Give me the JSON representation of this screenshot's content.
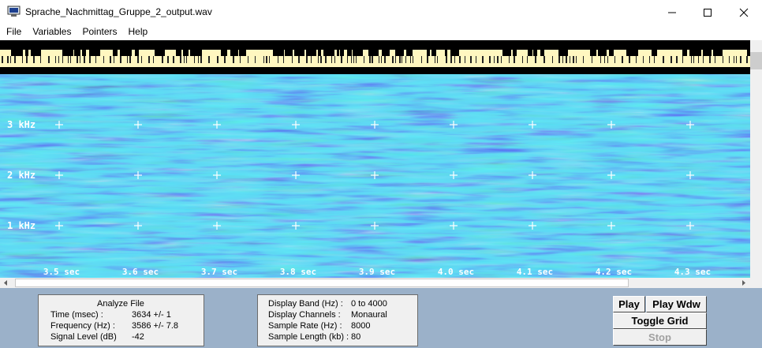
{
  "window": {
    "title": "Sprache_Nachmittag_Gruppe_2_output.wav"
  },
  "menu": [
    "File",
    "Variables",
    "Pointers",
    "Help"
  ],
  "spectrogram": {
    "freq_labels": [
      "3  kHz",
      "2  kHz",
      "1  kHz"
    ],
    "time_labels": [
      "3.5 sec",
      "3.6 sec",
      "3.7 sec",
      "3.8 sec",
      "3.9 sec",
      "4.0 sec",
      "4.1 sec",
      "4.2 sec",
      "4.3 sec"
    ],
    "colors": {
      "background": "#22b4e8",
      "dark": "#1a2a9a",
      "light": "#7ad8b8",
      "marker_bar": "#fff7c0"
    }
  },
  "analyze": {
    "title": "Analyze File",
    "rows": [
      {
        "label": "Time (msec) :",
        "value": "3634 +/- 1"
      },
      {
        "label": "Frequency (Hz) :",
        "value": "3586 +/- 7.8"
      },
      {
        "label": "Signal Level (dB)",
        "value": "-42"
      }
    ]
  },
  "display": {
    "rows": [
      {
        "label": "Display Band (Hz) :",
        "value": "0 to 4000"
      },
      {
        "label": "Display Channels :",
        "value": "Monaural"
      },
      {
        "label": "Sample Rate (Hz) :",
        "value": "8000"
      },
      {
        "label": "Sample Length (kb) :",
        "value": "80"
      }
    ]
  },
  "buttons": {
    "play": "Play",
    "play_wdw": "Play Wdw",
    "toggle_grid": "Toggle Grid",
    "stop": "Stop"
  }
}
